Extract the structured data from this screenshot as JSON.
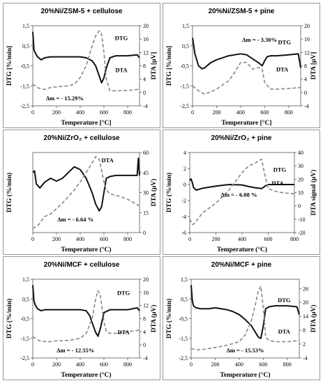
{
  "chart_data": [
    {
      "type": "line",
      "title": "20%Ni/ZSM-5 + cellulose",
      "xlabel": "Temperature [°C]",
      "ylabel": "DTG [%/min]",
      "y2label": "DTA [μV]",
      "xlim": [
        0,
        900
      ],
      "ylim": [
        -2.5,
        1.5
      ],
      "y2lim": [
        -4,
        20
      ],
      "xticks": [
        "0",
        "200",
        "400",
        "600",
        "800"
      ],
      "yticks": [
        "1,5",
        "0,5",
        "-0,5",
        "-1,5",
        "-2,5"
      ],
      "y2ticks": [
        "20",
        "16",
        "12",
        "8",
        "4",
        "0",
        "-4"
      ],
      "series": [
        {
          "name": "DTG",
          "axis": "left",
          "style": "solid",
          "color": "#111111",
          "x": [
            0,
            10,
            20,
            40,
            70,
            100,
            150,
            200,
            300,
            400,
            450,
            500,
            530,
            560,
            580,
            600,
            620,
            650,
            700,
            800,
            880,
            900
          ],
          "y": [
            1.2,
            0.3,
            0.15,
            -0.05,
            -0.2,
            -0.1,
            -0.05,
            -0.05,
            -0.05,
            -0.05,
            -0.1,
            -0.25,
            -0.5,
            -1.0,
            -1.35,
            -1.1,
            -0.6,
            -0.1,
            0.0,
            0.0,
            0.05,
            -0.1
          ]
        },
        {
          "name": "DTA",
          "axis": "right",
          "style": "dashed",
          "color": "#8c8c8c",
          "x": [
            0,
            50,
            100,
            150,
            200,
            300,
            350,
            400,
            450,
            500,
            530,
            560,
            580,
            600,
            620,
            650,
            700,
            800,
            900
          ],
          "y": [
            2.5,
            1.3,
            0.9,
            1.5,
            1.7,
            2.0,
            2.5,
            4.5,
            8.0,
            14.0,
            17.0,
            18.5,
            17.5,
            12.0,
            4.0,
            0.5,
            0.5,
            0.6,
            1.0
          ]
        }
      ],
      "annotations": [
        "DTG",
        "DTA",
        "Δm = - 15.29%"
      ]
    },
    {
      "type": "line",
      "title": "20%Ni/ZSM-5 + pine",
      "xlabel": "Temperature [°C]",
      "ylabel": "DTG [%/min]",
      "y2label": "DTA [μV]",
      "xlim": [
        0,
        900
      ],
      "ylim": [
        -2.5,
        1.5
      ],
      "y2lim": [
        -4,
        20
      ],
      "xticks": [
        "0",
        "200",
        "400",
        "600",
        "800"
      ],
      "yticks": [
        "1,5",
        "0,5",
        "-0,5",
        "-1,5",
        "-2,5"
      ],
      "y2ticks": [
        "20",
        "16",
        "12",
        "8",
        "4",
        "0",
        "-4"
      ],
      "series": [
        {
          "name": "DTG",
          "axis": "left",
          "style": "solid",
          "color": "#111111",
          "x": [
            0,
            20,
            50,
            80,
            100,
            150,
            200,
            300,
            400,
            450,
            500,
            550,
            580,
            600,
            620,
            650,
            700,
            800,
            880,
            900
          ],
          "y": [
            0.9,
            0.1,
            -0.5,
            -0.65,
            -0.6,
            -0.35,
            -0.2,
            0.0,
            0.1,
            0.05,
            -0.15,
            -0.35,
            -0.5,
            -0.25,
            -0.05,
            0.0,
            0.0,
            0.05,
            0.1,
            -0.6
          ]
        },
        {
          "name": "DTA",
          "axis": "right",
          "style": "dashed",
          "color": "#8c8c8c",
          "x": [
            0,
            50,
            100,
            150,
            200,
            300,
            350,
            400,
            450,
            500,
            550,
            580,
            600,
            650,
            700,
            800,
            900
          ],
          "y": [
            2.0,
            0.5,
            -0.5,
            0.2,
            1.0,
            3.5,
            6.0,
            9.0,
            9.0,
            7.0,
            7.5,
            7.0,
            3.0,
            1.0,
            1.0,
            1.2,
            1.5
          ]
        }
      ],
      "annotations": [
        "DTG",
        "DTA",
        "Δm = - 3.30%"
      ]
    },
    {
      "type": "line",
      "title": "20%Ni/ZrO₂ + cellulose",
      "xlabel": "Temperature (°C)",
      "ylabel": "DTG (%/min)",
      "y2label": "DTA (μV)",
      "xlim": [
        0,
        900
      ],
      "ylim": [
        -1,
        0.4
      ],
      "y2lim": [
        0,
        60
      ],
      "xticks": [
        "0",
        "200",
        "400",
        "600",
        "800"
      ],
      "yticks": [],
      "y2ticks": [
        "60",
        "45",
        "30",
        "15",
        "0"
      ],
      "series": [
        {
          "name": "DTG",
          "axis": "left",
          "style": "solid",
          "color": "#111111",
          "x": [
            0,
            15,
            30,
            60,
            100,
            150,
            200,
            250,
            300,
            350,
            400,
            450,
            500,
            530,
            560,
            580,
            600,
            620,
            650,
            700,
            800,
            880,
            890,
            900
          ],
          "y": [
            0.05,
            0.08,
            -0.15,
            -0.22,
            -0.12,
            -0.05,
            -0.1,
            -0.05,
            0.05,
            0.15,
            0.1,
            -0.05,
            -0.3,
            -0.5,
            -0.62,
            -0.55,
            -0.3,
            -0.05,
            -0.02,
            0.0,
            0.0,
            0.0,
            0.3,
            0.0
          ]
        },
        {
          "name": "DTA",
          "axis": "right",
          "style": "dashed",
          "color": "#8c8c8c",
          "x": [
            0,
            50,
            100,
            150,
            200,
            250,
            300,
            350,
            400,
            450,
            500,
            530,
            560,
            600,
            620,
            650,
            700,
            800,
            900
          ],
          "y": [
            3.0,
            6.0,
            12.0,
            14.0,
            18.0,
            22.0,
            27.0,
            32.0,
            38.0,
            45.0,
            52.0,
            57.0,
            55.0,
            38.0,
            32.0,
            29.0,
            28.0,
            25.0,
            20.0
          ]
        }
      ],
      "annotations": [
        "DTA",
        "Δm = - 6.64 %"
      ]
    },
    {
      "type": "line",
      "title": "20%Ni/ZrO₂ + pine",
      "xlabel": "Temperature (°C)",
      "ylabel": "DTG (%/min)",
      "y2label": "DTA signal (μV)",
      "xlim": [
        0,
        800
      ],
      "ylim": [
        -6,
        4
      ],
      "y2lim": [
        -20,
        40
      ],
      "xticks": [
        "0",
        "200",
        "400",
        "600",
        "800"
      ],
      "yticks": [
        "4",
        "2",
        "0",
        "-2",
        "-4",
        "-6"
      ],
      "y2ticks": [
        "40",
        "30",
        "20",
        "10",
        "0",
        "-10",
        "-20"
      ],
      "series": [
        {
          "name": "DTG",
          "axis": "left",
          "style": "solid",
          "color": "#111111",
          "x": [
            0,
            10,
            20,
            30,
            50,
            100,
            200,
            300,
            400,
            450,
            500,
            550,
            580,
            600,
            700,
            800
          ],
          "y": [
            0.5,
            0.7,
            0.2,
            -0.4,
            -0.7,
            -0.45,
            -0.2,
            0.0,
            -0.05,
            -0.25,
            -0.4,
            -0.5,
            -0.15,
            0.0,
            0.0,
            0.0
          ]
        },
        {
          "name": "DTA",
          "axis": "right",
          "style": "dashed",
          "color": "#8c8c8c",
          "x": [
            0,
            20,
            40,
            60,
            100,
            200,
            300,
            400,
            450,
            500,
            530,
            550,
            570,
            600,
            650,
            700,
            800
          ],
          "y": [
            -10.0,
            -14.0,
            -13.0,
            -10.0,
            -5.0,
            2.0,
            12.0,
            25.0,
            30.0,
            32.0,
            34.0,
            35.0,
            25.0,
            13.0,
            11.0,
            10.0,
            9.0
          ]
        }
      ],
      "annotations": [
        "DTG",
        "DTA",
        "Δm = - 6.08 %"
      ]
    },
    {
      "type": "line",
      "title": "20%Ni/MCF + cellulose",
      "xlabel": "Temperature (°C)",
      "ylabel": "DTG (%/min)",
      "y2label": "DTA (μV)",
      "xlim": [
        0,
        900
      ],
      "ylim": [
        -2.5,
        1.5
      ],
      "y2lim": [
        -4,
        20
      ],
      "xticks": [
        "0",
        "200",
        "400",
        "600",
        "800"
      ],
      "yticks": [
        "1,5",
        "0,5",
        "-0,5",
        "-1,5",
        "-2,5"
      ],
      "y2ticks": [
        "20",
        "16",
        "12",
        "8",
        "4",
        "0",
        "-4"
      ],
      "series": [
        {
          "name": "DTG",
          "axis": "left",
          "style": "solid",
          "color": "#111111",
          "x": [
            0,
            10,
            20,
            40,
            70,
            100,
            200,
            300,
            400,
            450,
            480,
            500,
            530,
            550,
            570,
            600,
            650,
            700,
            800,
            880,
            900
          ],
          "y": [
            1.2,
            0.4,
            0.2,
            0.0,
            -0.1,
            -0.05,
            -0.05,
            -0.05,
            -0.05,
            -0.1,
            -0.35,
            -0.7,
            -1.2,
            -1.4,
            -1.0,
            -0.2,
            -0.05,
            -0.05,
            -0.05,
            0.05,
            -0.1
          ]
        },
        {
          "name": "DTA",
          "axis": "right",
          "style": "dashed",
          "color": "#8c8c8c",
          "x": [
            0,
            50,
            100,
            150,
            200,
            300,
            400,
            450,
            500,
            530,
            550,
            570,
            600,
            620,
            650,
            700,
            800,
            900
          ],
          "y": [
            2.5,
            1.3,
            1.0,
            1.0,
            1.2,
            1.3,
            2.0,
            3.5,
            8.0,
            14.0,
            16.5,
            15.0,
            7.0,
            4.0,
            3.5,
            3.5,
            4.0,
            4.5
          ]
        }
      ],
      "annotations": [
        "DTG",
        "DTA",
        "Δm = - 12.55%"
      ]
    },
    {
      "type": "line",
      "title": "20%Ni/MCF + pine",
      "xlabel": "Temperature (°C)",
      "ylabel": "DTG (%/min)",
      "y2label": "DTA (μV)",
      "xlim": [
        0,
        900
      ],
      "ylim": [
        -2.5,
        1.5
      ],
      "y2lim": [
        -4,
        30
      ],
      "xticks": [
        "0",
        "200",
        "400",
        "600",
        "800"
      ],
      "yticks": [
        "1,5",
        "0,5",
        "-0,5",
        "-1,5",
        "-2,5"
      ],
      "y2ticks": [
        "26",
        "20",
        "14",
        "8",
        "2",
        "-4"
      ],
      "series": [
        {
          "name": "DTG",
          "axis": "left",
          "style": "solid",
          "color": "#111111",
          "x": [
            0,
            10,
            20,
            40,
            80,
            150,
            200,
            250,
            300,
            350,
            400,
            450,
            500,
            530,
            560,
            580,
            600,
            620,
            650,
            700,
            800,
            880,
            900
          ],
          "y": [
            1.2,
            0.4,
            0.15,
            0.05,
            0.0,
            0.0,
            0.05,
            0.0,
            -0.05,
            -0.15,
            -0.3,
            -0.55,
            -0.85,
            -1.15,
            -1.45,
            -1.5,
            -0.9,
            0.0,
            0.1,
            0.15,
            0.15,
            0.1,
            -0.3
          ]
        },
        {
          "name": "DTA",
          "axis": "right",
          "style": "dashed",
          "color": "#8c8c8c",
          "x": [
            0,
            50,
            100,
            200,
            300,
            400,
            450,
            500,
            530,
            560,
            580,
            600,
            620,
            650,
            700,
            800,
            900
          ],
          "y": [
            0.0,
            -0.5,
            -0.3,
            0.5,
            1.5,
            3.0,
            6.0,
            12.0,
            18.0,
            25.0,
            27.0,
            18.0,
            5.0,
            3.5,
            3.0,
            3.0,
            3.5
          ]
        }
      ],
      "annotations": [
        "DTG",
        "DTA",
        "Δm = - 15.53%"
      ]
    }
  ]
}
